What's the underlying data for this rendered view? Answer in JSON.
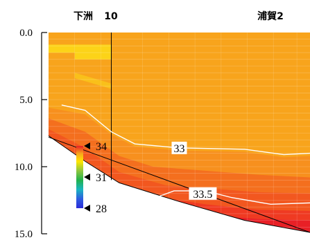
{
  "chart_data": {
    "type": "heatmap",
    "variable_hint": "salinity section",
    "y_axis": {
      "ticks": [
        0.0,
        5.0,
        10.0,
        15.0
      ],
      "tick_labels": [
        "0.0",
        "5.0",
        "10.0",
        "15.0"
      ],
      "range": [
        0,
        15
      ],
      "inverted": true
    },
    "stations": [
      {
        "label": "下洲",
        "x": 0.0
      },
      {
        "label": "10",
        "x": 0.27
      },
      {
        "label": "浦賀2",
        "x": 1.0
      }
    ],
    "bottom_profile": [
      {
        "x": 0.0,
        "depth": 7.7
      },
      {
        "x": 0.14,
        "depth": 9.6
      },
      {
        "x": 0.27,
        "depth": 11.2
      },
      {
        "x": 0.5,
        "depth": 12.6
      },
      {
        "x": 0.75,
        "depth": 14.0
      },
      {
        "x": 1.0,
        "depth": 14.9
      }
    ],
    "contours": [
      {
        "label": "33",
        "level": 33.0,
        "points": [
          {
            "x": 0.05,
            "depth": 5.4
          },
          {
            "x": 0.14,
            "depth": 5.8
          },
          {
            "x": 0.24,
            "depth": 7.4
          },
          {
            "x": 0.33,
            "depth": 8.3
          },
          {
            "x": 0.5,
            "depth": 8.6
          },
          {
            "x": 0.75,
            "depth": 8.7
          },
          {
            "x": 0.9,
            "depth": 9.1
          },
          {
            "x": 1.0,
            "depth": 9.0
          }
        ],
        "label_at": {
          "x": 0.5,
          "depth": 8.6
        }
      },
      {
        "label": "33.5",
        "level": 33.5,
        "points": [
          {
            "x": 0.41,
            "depth": 12.3
          },
          {
            "x": 0.48,
            "depth": 11.8
          },
          {
            "x": 0.6,
            "depth": 11.8
          },
          {
            "x": 0.7,
            "depth": 12.3
          },
          {
            "x": 0.85,
            "depth": 12.8
          },
          {
            "x": 1.0,
            "depth": 12.7
          }
        ],
        "label_at": {
          "x": 0.59,
          "depth": 12.0
        }
      }
    ],
    "colorbar": {
      "labels": [
        "34",
        "31",
        "28"
      ],
      "values": [
        34,
        31,
        28
      ]
    }
  },
  "colors": {
    "surface": "#f8a41c",
    "light": "#fcd318",
    "mid": "#f7901e",
    "orange_red": "#f46f1e",
    "red_orange": "#f2571f",
    "deep": "#ef3a22",
    "deepest": "#e82026",
    "contour": "#ffffff"
  }
}
